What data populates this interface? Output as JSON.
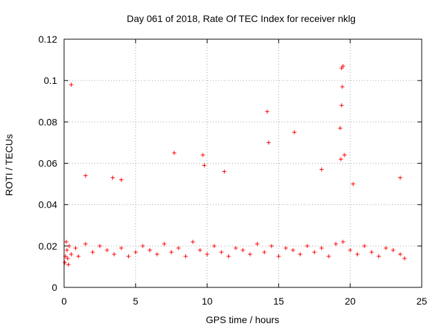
{
  "chart_data": {
    "type": "scatter",
    "title": "Day 061 of 2018, Rate Of TEC Index for receiver nklg",
    "xlabel": "GPS time / hours",
    "ylabel": "ROTI / TECUs",
    "xlim": [
      0,
      25
    ],
    "ylim": [
      0,
      0.12
    ],
    "x_ticks": [
      "0",
      "5",
      "10",
      "15",
      "20",
      "25"
    ],
    "y_ticks": [
      "0",
      "0.02",
      "0.04",
      "0.06",
      "0.08",
      "0.1",
      "0.12"
    ],
    "grid": true,
    "marker": "+",
    "color": "#ff0000",
    "series": [
      {
        "name": "ROTI",
        "x": [
          0.05,
          0.1,
          0.15,
          0.2,
          0.25,
          0.3,
          0.35,
          0.5,
          0.8,
          1.0,
          1.5,
          2.0,
          2.5,
          3.0,
          3.5,
          4.0,
          4.5,
          5.0,
          5.5,
          6.0,
          6.5,
          7.0,
          7.5,
          8.0,
          8.5,
          9.0,
          9.5,
          10.0,
          10.5,
          11.0,
          11.5,
          12.0,
          12.5,
          13.0,
          13.5,
          14.0,
          14.5,
          15.0,
          15.5,
          16.0,
          16.5,
          17.0,
          17.5,
          18.0,
          18.5,
          19.0,
          19.5,
          20.0,
          20.5,
          21.0,
          21.5,
          22.0,
          22.5,
          23.0,
          23.5,
          23.8,
          0.5,
          1.5,
          3.4,
          4.0,
          7.7,
          9.7,
          9.8,
          11.2,
          14.2,
          14.3,
          16.1,
          18.0,
          19.3,
          19.4,
          19.45,
          19.5,
          19.4,
          19.35,
          19.6,
          20.2,
          23.5
        ],
        "y": [
          0.012,
          0.015,
          0.022,
          0.018,
          0.014,
          0.011,
          0.02,
          0.016,
          0.019,
          0.015,
          0.021,
          0.017,
          0.02,
          0.018,
          0.016,
          0.019,
          0.015,
          0.017,
          0.02,
          0.018,
          0.016,
          0.021,
          0.017,
          0.019,
          0.015,
          0.022,
          0.018,
          0.016,
          0.02,
          0.017,
          0.015,
          0.019,
          0.018,
          0.016,
          0.021,
          0.017,
          0.02,
          0.015,
          0.019,
          0.018,
          0.016,
          0.02,
          0.017,
          0.019,
          0.015,
          0.021,
          0.022,
          0.018,
          0.016,
          0.02,
          0.017,
          0.015,
          0.019,
          0.018,
          0.016,
          0.014,
          0.098,
          0.054,
          0.053,
          0.052,
          0.065,
          0.064,
          0.059,
          0.056,
          0.085,
          0.07,
          0.075,
          0.057,
          0.077,
          0.088,
          0.097,
          0.107,
          0.106,
          0.062,
          0.064,
          0.05,
          0.053
        ]
      }
    ]
  }
}
